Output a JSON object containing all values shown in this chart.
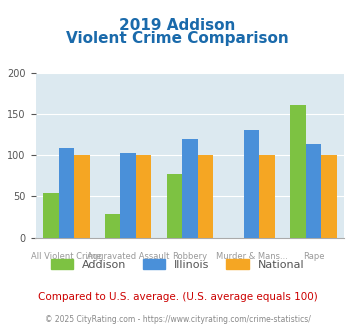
{
  "title_line1": "2019 Addison",
  "title_line2": "Violent Crime Comparison",
  "categories": [
    "All Violent Crime",
    "Aggravated Assault",
    "Robbery",
    "Murder & Mans...",
    "Rape"
  ],
  "addison": [
    54,
    29,
    77,
    0,
    161
  ],
  "illinois": [
    108,
    102,
    120,
    131,
    113
  ],
  "national": [
    100,
    100,
    100,
    100,
    100
  ],
  "color_addison": "#7dc242",
  "color_illinois": "#4a90d9",
  "color_national": "#f5a623",
  "ylim": [
    0,
    200
  ],
  "yticks": [
    0,
    50,
    100,
    150,
    200
  ],
  "bg_color": "#dce9f0",
  "title_color": "#1a6aab",
  "footer_text": "Compared to U.S. average. (U.S. average equals 100)",
  "footer_color": "#cc0000",
  "copyright_text": "© 2025 CityRating.com - https://www.cityrating.com/crime-statistics/",
  "copyright_color": "#888888",
  "bar_width": 0.25
}
